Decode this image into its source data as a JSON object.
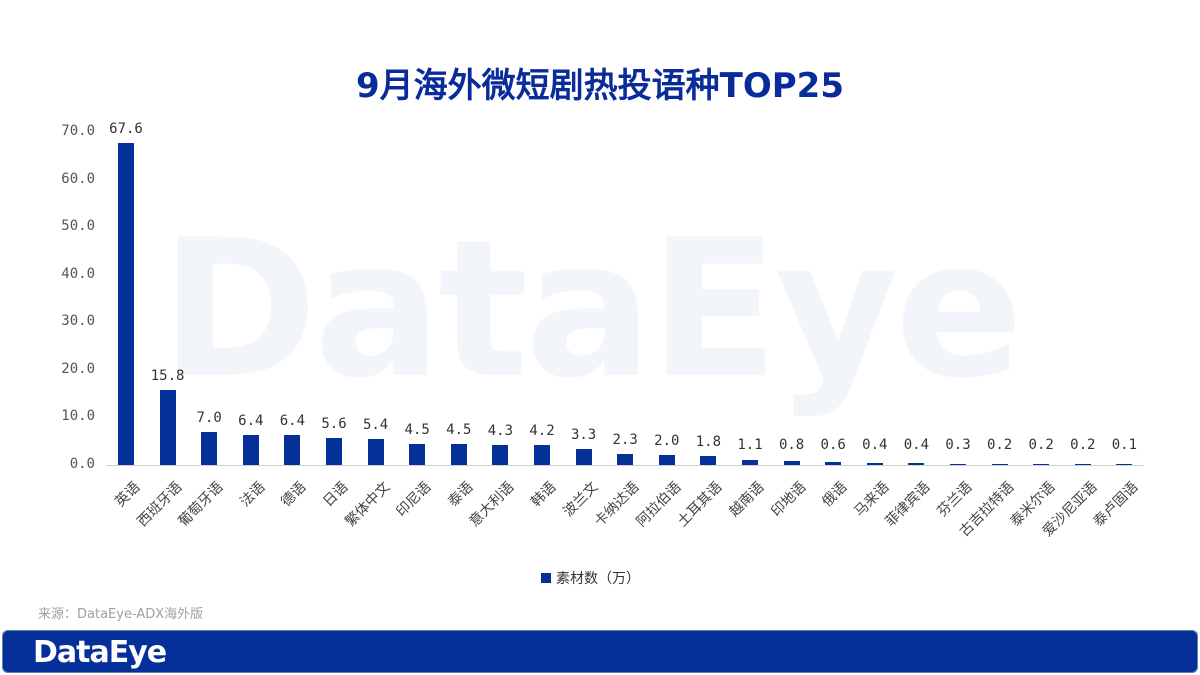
{
  "title": "9月海外微短剧热投语种TOP25",
  "watermark": "DataEye",
  "legend": {
    "label": "素材数（万）",
    "color": "#053098"
  },
  "source": "来源：DataEye-ADX海外版",
  "footer": {
    "logo": "DataEye",
    "color": "#052f99"
  },
  "y_ticks": [
    "0.0",
    "10.0",
    "20.0",
    "30.0",
    "40.0",
    "50.0",
    "60.0",
    "70.0"
  ],
  "chart_data": {
    "type": "bar",
    "title": "9月海外微短剧热投语种TOP25",
    "xlabel": "",
    "ylabel": "",
    "ylim": [
      0,
      70
    ],
    "grid": false,
    "legend_position": "bottom",
    "categories": [
      "英语",
      "西班牙语",
      "葡萄牙语",
      "法语",
      "德语",
      "日语",
      "繁体中文",
      "印尼语",
      "泰语",
      "意大利语",
      "韩语",
      "波兰文",
      "卡纳达语",
      "阿拉伯语",
      "土耳其语",
      "越南语",
      "印地语",
      "俄语",
      "马来语",
      "菲律宾语",
      "芬兰语",
      "古吉拉特语",
      "泰米尔语",
      "爱沙尼亚语",
      "泰卢固语"
    ],
    "series": [
      {
        "name": "素材数（万）",
        "color": "#053098",
        "values": [
          67.6,
          15.8,
          7.0,
          6.4,
          6.4,
          5.6,
          5.4,
          4.5,
          4.5,
          4.3,
          4.2,
          3.3,
          2.3,
          2.0,
          1.8,
          1.1,
          0.8,
          0.6,
          0.4,
          0.4,
          0.3,
          0.2,
          0.2,
          0.2,
          0.1
        ],
        "labels": [
          "67.6",
          "15.8",
          "7.0",
          "6.4",
          "6.4",
          "5.6",
          "5.4",
          "4.5",
          "4.5",
          "4.3",
          "4.2",
          "3.3",
          "2.3",
          "2.0",
          "1.8",
          "1.1",
          "0.8",
          "0.6",
          "0.4",
          "0.4",
          "0.3",
          "0.2",
          "0.2",
          "0.2",
          "0.1"
        ]
      }
    ]
  }
}
